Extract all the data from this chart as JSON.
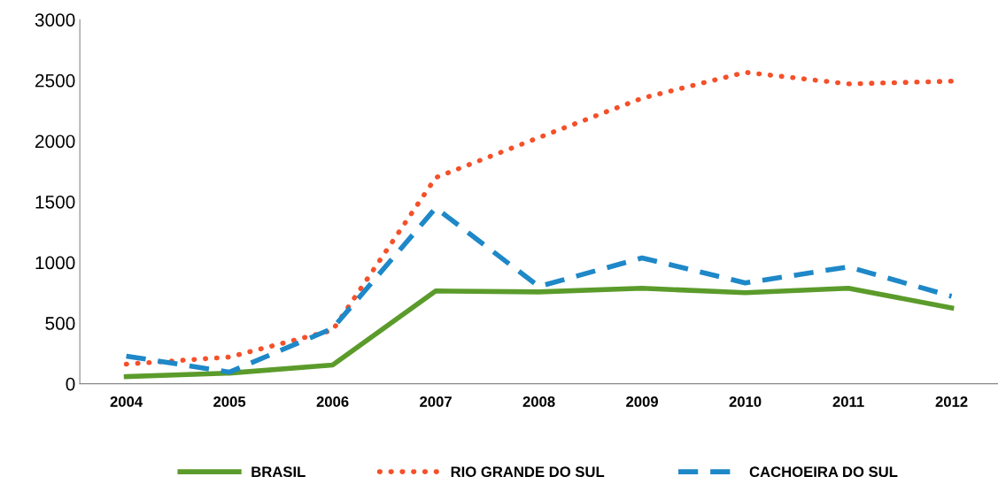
{
  "chart_data": {
    "type": "line",
    "categories": [
      "2004",
      "2005",
      "2006",
      "2007",
      "2008",
      "2009",
      "2010",
      "2011",
      "2012"
    ],
    "ylim": [
      0,
      3000
    ],
    "yticks": [
      0,
      500,
      1000,
      1500,
      2000,
      2500,
      3000
    ],
    "grid": false,
    "legend": "bottom",
    "marker": "none",
    "series": [
      {
        "name": "BRASIL",
        "color": "#5b9b2b",
        "line_style": "solid",
        "values": [
          59,
          88,
          154,
          765,
          757,
          787,
          750,
          787,
          625
        ]
      },
      {
        "name": "RIO GRANDE DO SUL",
        "color": "#f5502a",
        "line_style": "dotted",
        "values": [
          162,
          220,
          441,
          1699,
          2029,
          2353,
          2566,
          2471,
          2493
        ]
      },
      {
        "name": "CACHOEIRA DO SUL",
        "color": "#1e88c8",
        "line_style": "dashed",
        "values": [
          228,
          96,
          456,
          1449,
          801,
          1037,
          831,
          963,
          721
        ]
      }
    ]
  }
}
